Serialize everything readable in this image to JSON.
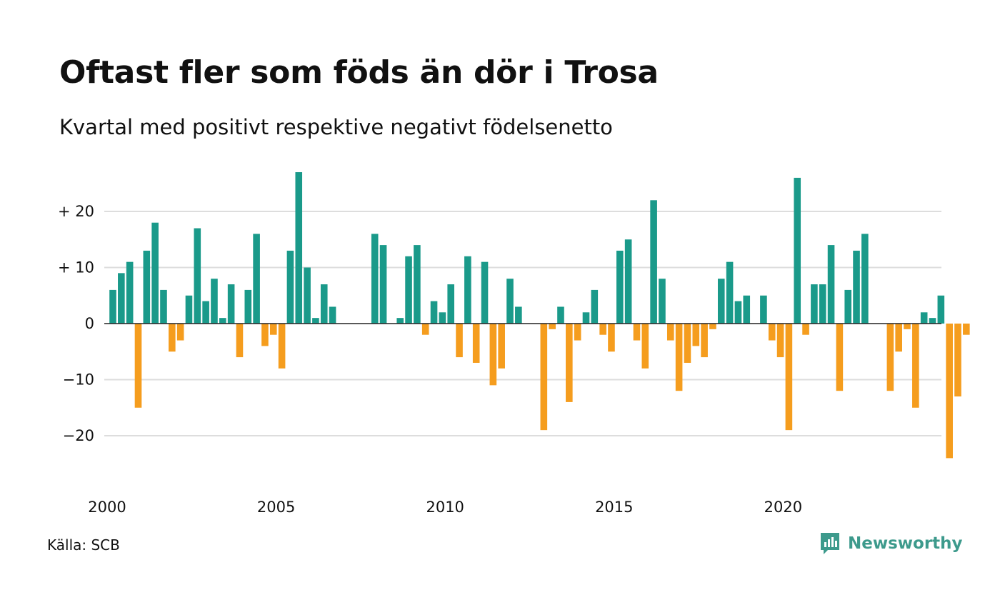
{
  "title": "Oftast fler som föds än dör i Trosa",
  "subtitle": "Kvartal med positivt respektive negativt födelsenetto",
  "source": "Källa: SCB",
  "brand": {
    "name": "Newsworthy",
    "icon": "newsworthy-logo-icon"
  },
  "colors": {
    "positive": "#1a9a8a",
    "negative": "#f59d1e",
    "grid": "#dddddd",
    "zero": "#222222",
    "brand": "#3d9a8c"
  },
  "chart_data": {
    "type": "bar",
    "title": "Oftast fler som föds än dör i Trosa",
    "subtitle": "Kvartal med positivt respektive negativt födelsenetto",
    "xlabel": "",
    "ylabel": "",
    "ylim": [
      -27,
      29
    ],
    "grid": true,
    "legend": "none",
    "y_ticks": [
      {
        "value": 20,
        "label": "+ 20"
      },
      {
        "value": 10,
        "label": "+ 10"
      },
      {
        "value": 0,
        "label": "0"
      },
      {
        "value": -10,
        "label": "−10"
      },
      {
        "value": -20,
        "label": "−20"
      }
    ],
    "x_ticks": [
      {
        "label": "2000",
        "index": 0
      },
      {
        "label": "2005",
        "index": 20
      },
      {
        "label": "2010",
        "index": 40
      },
      {
        "label": "2015",
        "index": 60
      },
      {
        "label": "2020",
        "index": 80
      }
    ],
    "start": "2000 Q1",
    "frequency": "quarterly",
    "values": [
      6,
      9,
      11,
      -15,
      13,
      18,
      6,
      -5,
      -3,
      5,
      17,
      4,
      8,
      1,
      7,
      -6,
      6,
      16,
      -4,
      -2,
      -8,
      13,
      27,
      10,
      1,
      7,
      3,
      0,
      0,
      0,
      0,
      16,
      14,
      0,
      1,
      12,
      14,
      -2,
      4,
      2,
      7,
      -6,
      12,
      -7,
      11,
      -11,
      -8,
      8,
      3,
      0,
      0,
      -19,
      -1,
      3,
      -14,
      -3,
      2,
      6,
      -2,
      -5,
      13,
      15,
      -3,
      -8,
      22,
      8,
      -3,
      -12,
      -7,
      -4,
      -6,
      -1,
      8,
      11,
      4,
      5,
      0,
      5,
      -3,
      -6,
      -19,
      26,
      -2,
      7,
      7,
      14,
      -12,
      6,
      13,
      16,
      0,
      0,
      -12,
      -5,
      -1,
      -15,
      2,
      1,
      5,
      -24,
      -13,
      -2
    ]
  }
}
